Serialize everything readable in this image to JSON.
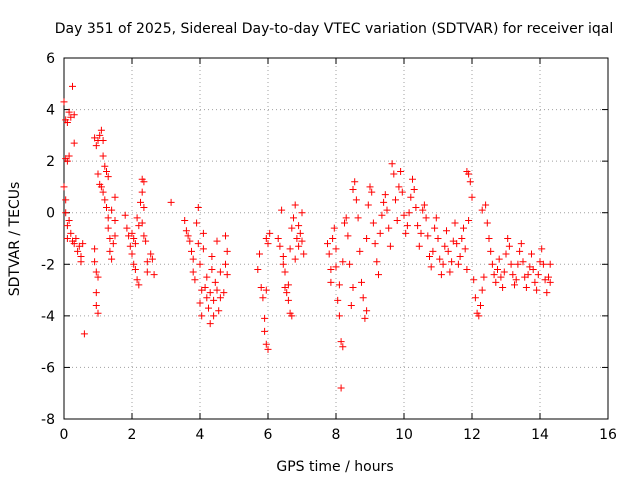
{
  "chart_data": {
    "type": "scatter",
    "title": "Day 351 of 2025, Sidereal Day-to-day VTEC variation (SDTVAR) for receiver iqal",
    "xlabel": "GPS time / hours",
    "ylabel": "SDTVAR / TECUs",
    "xlim": [
      0,
      16
    ],
    "ylim": [
      -8,
      6
    ],
    "xticks": [
      "0",
      "2",
      "4",
      "6",
      "8",
      "10",
      "12",
      "14",
      "16"
    ],
    "yticks": [
      "-8",
      "-6",
      "-4",
      "-2",
      "0",
      "2",
      "4",
      "6"
    ],
    "grid": true,
    "marker": "plus",
    "colors": {
      "series": "#ff0000",
      "axis": "#000000",
      "grid": "#a0a0a0"
    },
    "series": [
      {
        "name": "SDTVAR",
        "points": [
          [
            0.0,
            4.3
          ],
          [
            0.05,
            3.6
          ],
          [
            0.1,
            3.5
          ],
          [
            0.15,
            3.9
          ],
          [
            0.2,
            3.7
          ],
          [
            0.25,
            4.9
          ],
          [
            0.3,
            3.8
          ],
          [
            0.3,
            2.7
          ],
          [
            0.05,
            2.1
          ],
          [
            0.1,
            2.0
          ],
          [
            0.15,
            2.2
          ],
          [
            0.0,
            1.0
          ],
          [
            0.05,
            0.5
          ],
          [
            0.05,
            0.0
          ],
          [
            0.1,
            -0.5
          ],
          [
            0.1,
            -1.0
          ],
          [
            0.15,
            -0.3
          ],
          [
            0.2,
            -0.8
          ],
          [
            0.25,
            -1.1
          ],
          [
            0.3,
            -1.2
          ],
          [
            0.35,
            -1.0
          ],
          [
            0.4,
            -1.5
          ],
          [
            0.45,
            -1.3
          ],
          [
            0.5,
            -1.7
          ],
          [
            0.5,
            -1.9
          ],
          [
            0.55,
            -1.2
          ],
          [
            0.6,
            -4.7
          ],
          [
            0.9,
            -1.4
          ],
          [
            0.9,
            -1.9
          ],
          [
            0.95,
            -2.3
          ],
          [
            0.95,
            -3.1
          ],
          [
            0.95,
            -3.6
          ],
          [
            1.0,
            -3.9
          ],
          [
            1.0,
            -2.5
          ],
          [
            0.9,
            2.9
          ],
          [
            0.95,
            2.6
          ],
          [
            1.0,
            2.8
          ],
          [
            1.05,
            3.0
          ],
          [
            1.1,
            3.2
          ],
          [
            1.15,
            2.8
          ],
          [
            1.15,
            2.2
          ],
          [
            1.0,
            1.5
          ],
          [
            1.05,
            1.1
          ],
          [
            1.1,
            1.0
          ],
          [
            1.15,
            0.8
          ],
          [
            1.2,
            1.8
          ],
          [
            1.25,
            1.6
          ],
          [
            1.3,
            1.4
          ],
          [
            1.2,
            0.5
          ],
          [
            1.25,
            0.2
          ],
          [
            1.3,
            -0.2
          ],
          [
            1.3,
            -0.6
          ],
          [
            1.35,
            -1.0
          ],
          [
            1.35,
            -1.5
          ],
          [
            1.4,
            -1.8
          ],
          [
            1.4,
            0.1
          ],
          [
            1.5,
            0.6
          ],
          [
            1.5,
            -0.3
          ],
          [
            1.5,
            -0.9
          ],
          [
            1.45,
            -1.2
          ],
          [
            1.8,
            -0.1
          ],
          [
            1.85,
            -0.6
          ],
          [
            1.9,
            -0.9
          ],
          [
            1.95,
            -1.3
          ],
          [
            2.0,
            -0.8
          ],
          [
            2.0,
            -1.6
          ],
          [
            2.05,
            -2.0
          ],
          [
            2.05,
            -1.0
          ],
          [
            2.1,
            -1.2
          ],
          [
            2.1,
            -2.2
          ],
          [
            2.15,
            -2.6
          ],
          [
            2.15,
            -0.2
          ],
          [
            2.2,
            -0.5
          ],
          [
            2.2,
            -2.8
          ],
          [
            2.25,
            0.4
          ],
          [
            2.3,
            0.8
          ],
          [
            2.3,
            1.3
          ],
          [
            2.35,
            1.2
          ],
          [
            2.35,
            0.2
          ],
          [
            2.3,
            -0.4
          ],
          [
            2.35,
            -0.9
          ],
          [
            2.4,
            -1.1
          ],
          [
            2.45,
            -1.9
          ],
          [
            2.45,
            -2.3
          ],
          [
            2.55,
            -1.6
          ],
          [
            2.6,
            -1.8
          ],
          [
            2.65,
            -2.4
          ],
          [
            3.15,
            0.4
          ],
          [
            3.55,
            -0.3
          ],
          [
            3.6,
            -0.7
          ],
          [
            3.65,
            -0.9
          ],
          [
            3.7,
            -1.1
          ],
          [
            3.75,
            -1.5
          ],
          [
            3.8,
            -1.8
          ],
          [
            3.8,
            -2.3
          ],
          [
            3.85,
            -2.6
          ],
          [
            3.9,
            -0.4
          ],
          [
            3.95,
            0.2
          ],
          [
            3.95,
            -1.2
          ],
          [
            4.0,
            -2.0
          ],
          [
            4.0,
            -3.5
          ],
          [
            4.05,
            -4.0
          ],
          [
            4.05,
            -3.0
          ],
          [
            4.1,
            -0.8
          ],
          [
            4.1,
            -1.4
          ],
          [
            4.15,
            -2.9
          ],
          [
            4.2,
            -3.3
          ],
          [
            4.2,
            -2.5
          ],
          [
            4.25,
            -3.7
          ],
          [
            4.3,
            -4.3
          ],
          [
            4.3,
            -3.1
          ],
          [
            4.35,
            -1.7
          ],
          [
            4.35,
            -2.2
          ],
          [
            4.4,
            -3.4
          ],
          [
            4.4,
            -4.0
          ],
          [
            4.45,
            -2.7
          ],
          [
            4.5,
            -3.0
          ],
          [
            4.5,
            -1.1
          ],
          [
            4.55,
            -3.8
          ],
          [
            4.6,
            -3.3
          ],
          [
            4.6,
            -2.3
          ],
          [
            4.7,
            -3.1
          ],
          [
            4.75,
            -2.0
          ],
          [
            4.75,
            -0.9
          ],
          [
            4.8,
            -1.5
          ],
          [
            4.8,
            -2.4
          ],
          [
            5.7,
            -2.2
          ],
          [
            5.75,
            -1.6
          ],
          [
            5.8,
            -2.9
          ],
          [
            5.85,
            -3.3
          ],
          [
            5.9,
            -4.1
          ],
          [
            5.9,
            -4.6
          ],
          [
            5.95,
            -5.1
          ],
          [
            6.0,
            -5.3
          ],
          [
            5.95,
            -3.0
          ],
          [
            5.95,
            -1.0
          ],
          [
            6.0,
            -1.2
          ],
          [
            6.05,
            -0.8
          ],
          [
            6.3,
            -1.0
          ],
          [
            6.35,
            -1.3
          ],
          [
            6.4,
            0.1
          ],
          [
            6.45,
            -1.7
          ],
          [
            6.45,
            -2.0
          ],
          [
            6.5,
            -2.3
          ],
          [
            6.5,
            -2.9
          ],
          [
            6.55,
            -3.1
          ],
          [
            6.6,
            -2.8
          ],
          [
            6.6,
            -3.4
          ],
          [
            6.65,
            -3.9
          ],
          [
            6.7,
            -4.0
          ],
          [
            6.65,
            -1.4
          ],
          [
            6.7,
            -0.6
          ],
          [
            6.75,
            -0.2
          ],
          [
            6.8,
            0.3
          ],
          [
            6.8,
            -1.8
          ],
          [
            6.85,
            -1.0
          ],
          [
            6.9,
            -1.3
          ],
          [
            6.9,
            -0.5
          ],
          [
            6.95,
            -0.8
          ],
          [
            7.0,
            -1.1
          ],
          [
            7.05,
            -1.6
          ],
          [
            7.0,
            0.0
          ],
          [
            7.75,
            -1.2
          ],
          [
            7.8,
            -1.6
          ],
          [
            7.85,
            -2.2
          ],
          [
            7.85,
            -2.7
          ],
          [
            7.9,
            -1.0
          ],
          [
            7.95,
            -0.6
          ],
          [
            8.0,
            -1.4
          ],
          [
            8.0,
            -2.1
          ],
          [
            8.05,
            -3.4
          ],
          [
            8.1,
            -4.0
          ],
          [
            8.1,
            -2.8
          ],
          [
            8.15,
            -5.0
          ],
          [
            8.15,
            -6.8
          ],
          [
            8.2,
            -5.2
          ],
          [
            8.2,
            -1.9
          ],
          [
            8.25,
            -0.4
          ],
          [
            8.3,
            -0.2
          ],
          [
            8.35,
            -0.9
          ],
          [
            8.4,
            -2.0
          ],
          [
            8.45,
            -3.6
          ],
          [
            8.5,
            -2.9
          ],
          [
            8.5,
            0.9
          ],
          [
            8.55,
            1.2
          ],
          [
            8.6,
            0.5
          ],
          [
            8.65,
            -0.2
          ],
          [
            8.7,
            -1.5
          ],
          [
            8.75,
            -2.7
          ],
          [
            8.8,
            -3.3
          ],
          [
            8.85,
            -4.1
          ],
          [
            8.9,
            -3.8
          ],
          [
            8.9,
            -1.0
          ],
          [
            8.95,
            0.3
          ],
          [
            9.0,
            1.0
          ],
          [
            9.05,
            0.8
          ],
          [
            9.1,
            -0.4
          ],
          [
            9.15,
            -1.2
          ],
          [
            9.2,
            -1.9
          ],
          [
            9.25,
            -2.4
          ],
          [
            9.3,
            -0.8
          ],
          [
            9.35,
            -0.1
          ],
          [
            9.4,
            0.4
          ],
          [
            9.45,
            0.7
          ],
          [
            9.5,
            0.1
          ],
          [
            9.55,
            -0.6
          ],
          [
            9.6,
            -1.3
          ],
          [
            9.65,
            1.9
          ],
          [
            9.7,
            1.5
          ],
          [
            9.75,
            0.5
          ],
          [
            9.8,
            -0.3
          ],
          [
            9.85,
            1.0
          ],
          [
            9.9,
            1.6
          ],
          [
            9.95,
            0.8
          ],
          [
            10.0,
            -0.1
          ],
          [
            10.05,
            -0.8
          ],
          [
            10.1,
            -0.5
          ],
          [
            10.15,
            0.0
          ],
          [
            10.2,
            0.6
          ],
          [
            10.25,
            1.3
          ],
          [
            10.3,
            0.9
          ],
          [
            10.35,
            0.2
          ],
          [
            10.4,
            -0.5
          ],
          [
            10.45,
            -1.3
          ],
          [
            10.5,
            -0.8
          ],
          [
            10.55,
            0.1
          ],
          [
            10.6,
            0.3
          ],
          [
            10.65,
            -0.2
          ],
          [
            10.7,
            -0.9
          ],
          [
            10.75,
            -1.7
          ],
          [
            10.8,
            -2.1
          ],
          [
            10.85,
            -1.5
          ],
          [
            10.9,
            -0.6
          ],
          [
            10.95,
            -0.2
          ],
          [
            11.0,
            -1.0
          ],
          [
            11.05,
            -1.8
          ],
          [
            11.1,
            -2.4
          ],
          [
            11.15,
            -2.0
          ],
          [
            11.2,
            -1.3
          ],
          [
            11.25,
            -0.7
          ],
          [
            11.3,
            -1.5
          ],
          [
            11.35,
            -2.3
          ],
          [
            11.4,
            -1.9
          ],
          [
            11.45,
            -1.1
          ],
          [
            11.5,
            -0.4
          ],
          [
            11.55,
            -1.2
          ],
          [
            11.6,
            -2.0
          ],
          [
            11.65,
            -1.7
          ],
          [
            11.7,
            -1.0
          ],
          [
            11.75,
            -0.6
          ],
          [
            11.8,
            -1.4
          ],
          [
            11.85,
            -2.2
          ],
          [
            11.9,
            -0.3
          ],
          [
            11.85,
            1.6
          ],
          [
            11.9,
            1.5
          ],
          [
            11.95,
            1.2
          ],
          [
            12.0,
            0.6
          ],
          [
            12.05,
            -2.6
          ],
          [
            12.1,
            -3.3
          ],
          [
            12.15,
            -3.9
          ],
          [
            12.2,
            -4.0
          ],
          [
            12.25,
            -3.6
          ],
          [
            12.3,
            -3.0
          ],
          [
            12.35,
            -2.5
          ],
          [
            12.3,
            0.1
          ],
          [
            12.4,
            0.3
          ],
          [
            12.45,
            -0.4
          ],
          [
            12.5,
            -1.0
          ],
          [
            12.55,
            -1.5
          ],
          [
            12.6,
            -2.0
          ],
          [
            12.65,
            -2.4
          ],
          [
            12.7,
            -2.7
          ],
          [
            12.75,
            -2.2
          ],
          [
            12.8,
            -1.8
          ],
          [
            12.85,
            -2.5
          ],
          [
            12.9,
            -2.9
          ],
          [
            12.95,
            -2.3
          ],
          [
            13.0,
            -1.6
          ],
          [
            13.05,
            -1.0
          ],
          [
            13.1,
            -1.3
          ],
          [
            13.15,
            -2.0
          ],
          [
            13.2,
            -2.4
          ],
          [
            13.25,
            -2.8
          ],
          [
            13.3,
            -2.6
          ],
          [
            13.35,
            -2.0
          ],
          [
            13.4,
            -1.5
          ],
          [
            13.45,
            -1.2
          ],
          [
            13.5,
            -1.9
          ],
          [
            13.55,
            -2.5
          ],
          [
            13.6,
            -2.9
          ],
          [
            13.65,
            -2.4
          ],
          [
            13.7,
            -2.1
          ],
          [
            13.75,
            -1.6
          ],
          [
            13.8,
            -2.2
          ],
          [
            13.85,
            -2.7
          ],
          [
            13.9,
            -3.0
          ],
          [
            13.95,
            -2.4
          ],
          [
            14.0,
            -1.9
          ],
          [
            14.05,
            -1.4
          ],
          [
            14.1,
            -2.0
          ],
          [
            14.15,
            -2.6
          ],
          [
            14.2,
            -3.1
          ],
          [
            14.25,
            -2.5
          ],
          [
            14.3,
            -2.0
          ],
          [
            14.3,
            -2.7
          ]
        ]
      }
    ]
  }
}
